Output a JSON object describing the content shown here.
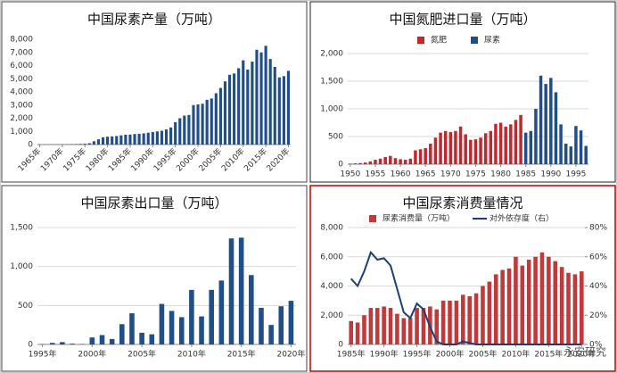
{
  "chart_data": [
    {
      "type": "bar",
      "title": "中国尿素产量（万吨）",
      "categories": [
        "1965年",
        null,
        null,
        null,
        null,
        "1970年",
        null,
        null,
        null,
        null,
        "1975年",
        null,
        null,
        null,
        null,
        "1980年",
        null,
        null,
        null,
        null,
        "1985年",
        null,
        null,
        null,
        null,
        "1990年",
        null,
        null,
        null,
        null,
        "1995年",
        null,
        null,
        null,
        null,
        "2000年",
        null,
        null,
        null,
        null,
        "2005年",
        null,
        null,
        null,
        null,
        "2010年",
        null,
        null,
        null,
        null,
        "2015年",
        null,
        null,
        null,
        null,
        "2020年"
      ],
      "series": [
        {
          "name": null,
          "color": "#1f4e89",
          "values": [
            10,
            10,
            10,
            15,
            20,
            20,
            25,
            30,
            40,
            50,
            60,
            100,
            250,
            400,
            550,
            600,
            620,
            650,
            700,
            750,
            760,
            800,
            820,
            850,
            900,
            950,
            1000,
            1050,
            1150,
            1300,
            1700,
            2000,
            2200,
            2250,
            3000,
            3050,
            3100,
            3400,
            3500,
            3900,
            4300,
            4800,
            5300,
            5400,
            5800,
            6400,
            5700,
            6300,
            7200,
            7000,
            7500,
            6500,
            5900,
            5100,
            5200,
            5600
          ]
        }
      ],
      "ylim": [
        0,
        8000
      ],
      "yticks": [
        0,
        {
          "value": 1000,
          "label": "1,000"
        },
        {
          "value": 2000,
          "label": "2,000"
        },
        {
          "value": 3000,
          "label": "3,000"
        },
        {
          "value": 4000,
          "label": "4,000"
        },
        {
          "value": 5000,
          "label": "5,000"
        },
        {
          "value": 6000,
          "label": "6,000"
        },
        {
          "value": 7000,
          "label": "7,000"
        },
        {
          "value": 8000,
          "label": "8,000"
        }
      ],
      "grid": false
    },
    {
      "type": "bar",
      "title": "中国氮肥进口量（万吨）",
      "categories": [
        "1950",
        null,
        null,
        null,
        null,
        "1955",
        null,
        null,
        null,
        null,
        "1960",
        null,
        null,
        null,
        null,
        "1965",
        null,
        null,
        null,
        null,
        "1970",
        null,
        null,
        null,
        null,
        "1975",
        null,
        null,
        null,
        null,
        "1980",
        null,
        null,
        null,
        null,
        "1985",
        null,
        null,
        null,
        null,
        "1990",
        null,
        null,
        null,
        null,
        "1995",
        null,
        null
      ],
      "series": [
        {
          "name": "氮肥",
          "color": "#c0282d",
          "values": [
            10,
            15,
            20,
            30,
            50,
            80,
            100,
            130,
            150,
            110,
            90,
            80,
            100,
            250,
            270,
            290,
            370,
            480,
            570,
            600,
            580,
            600,
            680,
            540,
            440,
            450,
            480,
            560,
            600,
            730,
            750,
            680,
            720,
            800,
            890,
            null,
            null,
            null,
            null,
            null,
            null,
            null,
            null,
            null,
            null,
            null,
            null,
            null
          ]
        },
        {
          "name": "尿素",
          "color": "#1f4e89",
          "values": [
            null,
            null,
            null,
            null,
            null,
            null,
            null,
            null,
            null,
            null,
            null,
            null,
            null,
            null,
            null,
            null,
            null,
            null,
            null,
            null,
            null,
            null,
            null,
            null,
            null,
            null,
            null,
            null,
            null,
            null,
            null,
            null,
            null,
            null,
            null,
            570,
            600,
            1000,
            1600,
            1450,
            1560,
            1300,
            720,
            370,
            320,
            690,
            610,
            330
          ]
        }
      ],
      "ylim": [
        0,
        2000
      ],
      "yticks": [
        0,
        500,
        {
          "value": 1000,
          "label": "1,000"
        },
        {
          "value": 1500,
          "label": "1,500"
        },
        {
          "value": 2000,
          "label": "2,000"
        }
      ],
      "grid": true,
      "legend": "top"
    },
    {
      "type": "bar",
      "title": "中国尿素出口量（万吨）",
      "categories": [
        "1995年",
        null,
        null,
        null,
        null,
        "2000年",
        null,
        null,
        null,
        null,
        "2005年",
        null,
        null,
        null,
        null,
        "2010年",
        null,
        null,
        null,
        null,
        "2015年",
        null,
        null,
        null,
        null,
        "2020年"
      ],
      "series": [
        {
          "name": null,
          "color": "#1f4e89",
          "values": [
            5,
            20,
            30,
            10,
            5,
            90,
            120,
            70,
            260,
            400,
            150,
            130,
            520,
            430,
            350,
            700,
            360,
            700,
            820,
            1360,
            1370,
            890,
            470,
            250,
            490,
            560
          ]
        }
      ],
      "ylim": [
        0,
        1500
      ],
      "yticks": [
        0,
        500,
        {
          "value": 1000,
          "label": "1,000"
        },
        {
          "value": 1500,
          "label": "1,500"
        }
      ],
      "grid": true
    },
    {
      "type": "combo",
      "title": "中国尿素消费量情况",
      "categories": [
        "1985年",
        null,
        null,
        null,
        null,
        "1990年",
        null,
        null,
        null,
        null,
        "1995年",
        null,
        null,
        null,
        null,
        "2000年",
        null,
        null,
        null,
        null,
        "2005年",
        null,
        null,
        null,
        null,
        "2010年",
        null,
        null,
        null,
        null,
        "2015年",
        null,
        null,
        null,
        null,
        "2020年"
      ],
      "series": [
        {
          "name": "尿素消费量（万吨）",
          "color": "#c0393b",
          "values": [
            1600,
            1500,
            2000,
            2500,
            2500,
            2600,
            2500,
            2100,
            1800,
            1800,
            2500,
            2500,
            2600,
            2400,
            3000,
            3000,
            3000,
            3400,
            3300,
            3500,
            4000,
            4300,
            4800,
            5100,
            5200,
            6000,
            5400,
            5800,
            6000,
            6300,
            6000,
            5700,
            5300,
            4900,
            4800,
            5000
          ]
        },
        {
          "name": "对外依存度（右）",
          "color": "#1f3d6e",
          "axis": "y2",
          "values": [
            45,
            40,
            50,
            63,
            58,
            59,
            54,
            38,
            22,
            18,
            28,
            24,
            12,
            2,
            0,
            0,
            0,
            2,
            1,
            0,
            0,
            0,
            0,
            0,
            0,
            0,
            0,
            0,
            0,
            0,
            0,
            0,
            0,
            0,
            0,
            0
          ]
        }
      ],
      "ylim": [
        0,
        8000
      ],
      "yticks": [
        0,
        {
          "value": 2000,
          "label": "2,000"
        },
        {
          "value": 4000,
          "label": "4,000"
        },
        {
          "value": 6000,
          "label": "6,000"
        },
        {
          "value": 8000,
          "label": "8,000"
        }
      ],
      "y2lim": [
        0,
        80
      ],
      "y2ticks": [
        {
          "value": 0,
          "label": "0%"
        },
        {
          "value": 20,
          "label": "20%"
        },
        {
          "value": 40,
          "label": "40%"
        },
        {
          "value": 60,
          "label": "60%"
        },
        {
          "value": 80,
          "label": "80%"
        }
      ],
      "grid": true,
      "legend": "top"
    }
  ],
  "watermark": "永安研究"
}
